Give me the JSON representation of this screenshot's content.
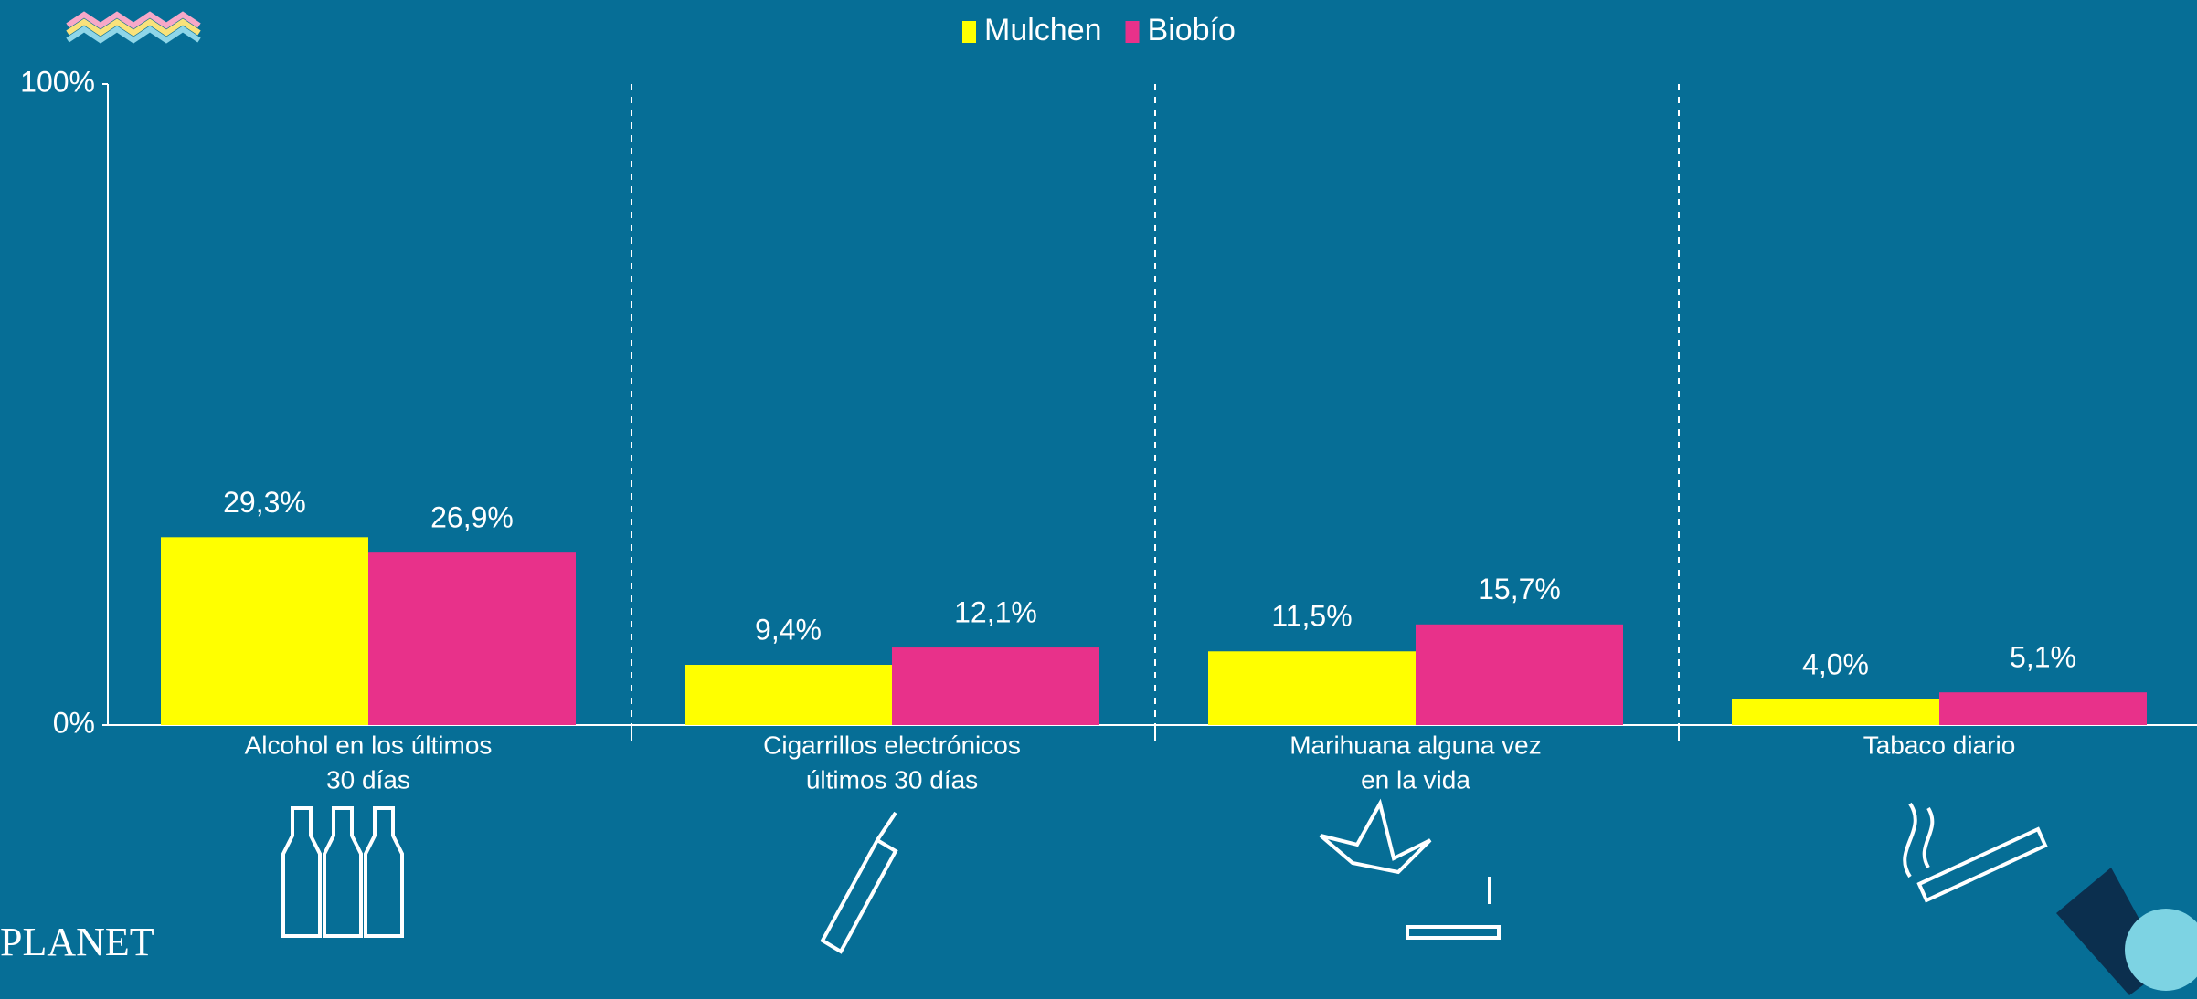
{
  "chart_data": {
    "type": "bar",
    "categories": [
      [
        "Alcohol en los últimos",
        "30 días"
      ],
      [
        "Cigarrillos electrónicos",
        "últimos 30 días"
      ],
      [
        "Marihuana alguna vez",
        "en la vida"
      ],
      [
        "Tabaco diario"
      ]
    ],
    "series": [
      {
        "name": "Mulchen",
        "color": "#ffff00",
        "values": [
          29.3,
          9.4,
          11.5,
          4.0
        ],
        "value_labels": [
          "29,3%",
          "9,4%",
          "11,5%",
          "4,0%"
        ]
      },
      {
        "name": "Biobío",
        "color": "#e8318a",
        "values": [
          26.9,
          12.1,
          15.7,
          5.1
        ],
        "value_labels": [
          "26,9%",
          "12,1%",
          "15,7%",
          "5,1%"
        ]
      }
    ],
    "ylim": [
      0,
      100
    ],
    "yticks": [
      {
        "value": 0,
        "label": "0%"
      },
      {
        "value": 100,
        "label": "100%"
      }
    ],
    "legend": "top"
  },
  "logo": "PLANET"
}
